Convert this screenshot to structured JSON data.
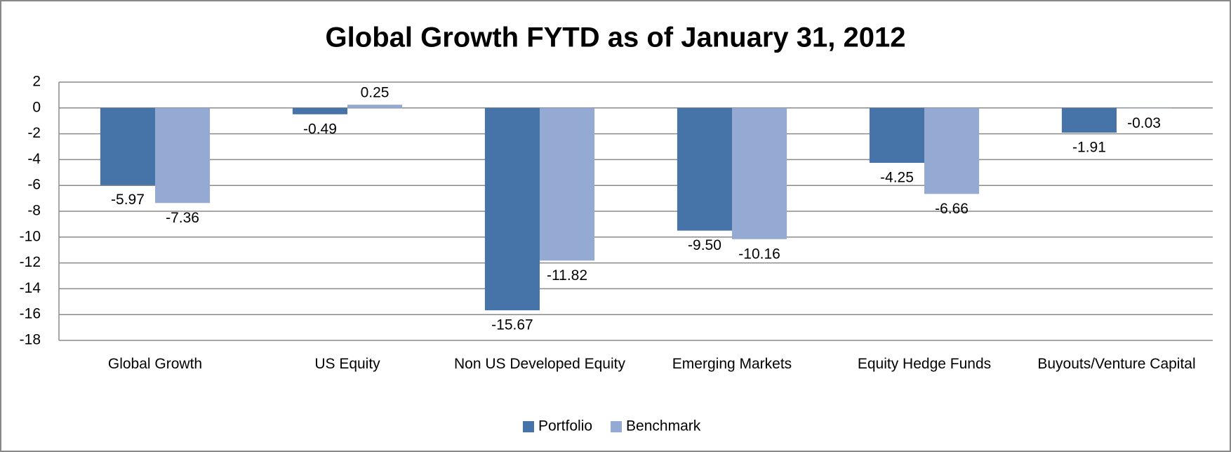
{
  "chart_data": {
    "type": "bar",
    "title": "Global Growth FYTD as of January 31, 2012",
    "categories": [
      "Global Growth",
      "US Equity",
      "Non US Developed Equity",
      "Emerging Markets",
      "Equity Hedge Funds",
      "Buyouts/Venture Capital"
    ],
    "series": [
      {
        "name": "Portfolio",
        "color": "#4674a8",
        "values": [
          -5.97,
          -0.49,
          -15.67,
          -9.5,
          -4.25,
          -1.91
        ],
        "value_labels": [
          "-5.97",
          "-0.49",
          "-15.67",
          "-9.50",
          "-4.25",
          "-1.91"
        ]
      },
      {
        "name": "Benchmark",
        "color": "#95aad3",
        "values": [
          -7.36,
          0.25,
          -11.82,
          -10.16,
          -6.66,
          -0.03
        ],
        "value_labels": [
          "-7.36",
          "0.25",
          "-11.82",
          "-10.16",
          "-6.66",
          "-0.03"
        ]
      }
    ],
    "ylim": [
      -18,
      2
    ],
    "yticks": [
      2,
      0,
      -2,
      -4,
      -6,
      -8,
      -10,
      -12,
      -14,
      -16,
      -18
    ],
    "grid": true,
    "legend": "bottom"
  }
}
